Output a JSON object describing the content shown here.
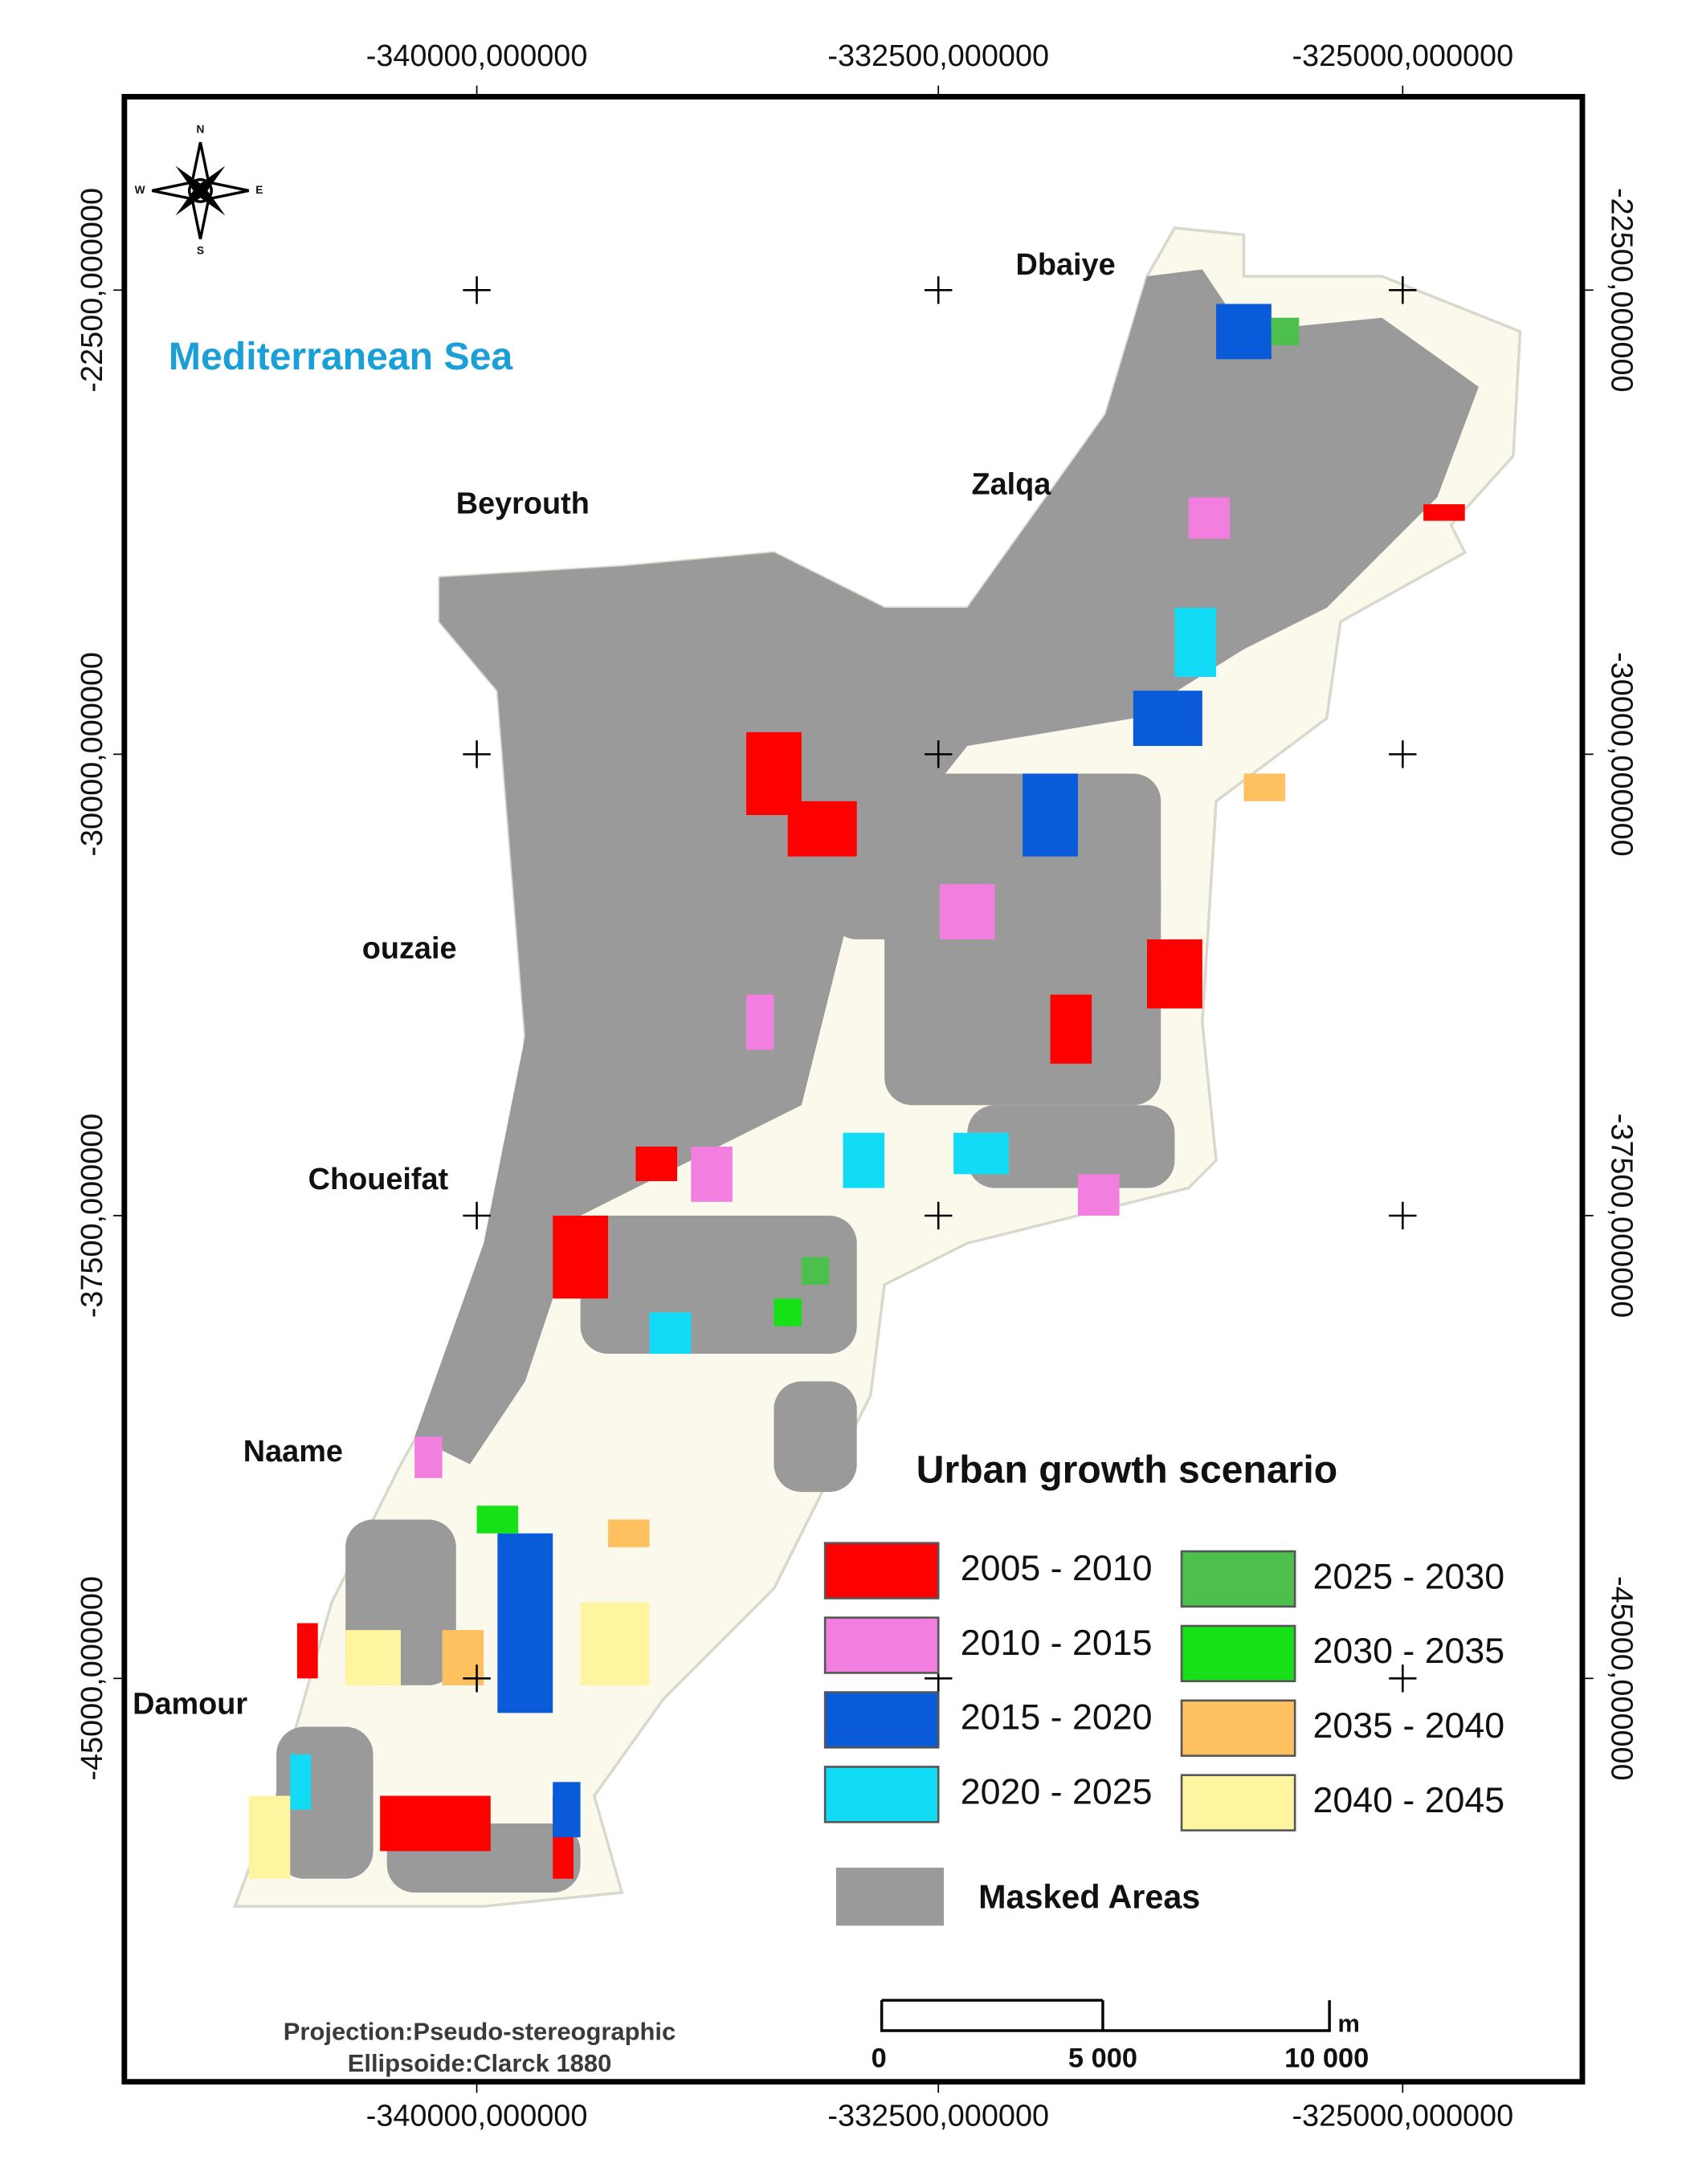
{
  "map": {
    "x_labels": [
      "-340000,000000",
      "-332500,000000",
      "-325000,000000"
    ],
    "y_labels": [
      "-22500,000000",
      "-30000,000000",
      "-37500,000000",
      "-45000,000000"
    ],
    "sea_label": "Mediterranean Sea",
    "places": [
      "Dbaiye",
      "Zalqa",
      "Beyrouth",
      "ouzaie",
      "Choueifat",
      "Naame",
      "Damour"
    ],
    "compass": [
      "N",
      "W",
      "E",
      "S"
    ],
    "legend": {
      "title": "Urban growth scenario",
      "items": [
        {
          "label": "2005 - 2010",
          "color": "#ff0000"
        },
        {
          "label": "2010 - 2015",
          "color": "#f27ee0"
        },
        {
          "label": "2015 - 2020",
          "color": "#0a5bd9"
        },
        {
          "label": "2020 - 2025",
          "color": "#12dcf5"
        },
        {
          "label": "2025 - 2030",
          "color": "#4cbf4c"
        },
        {
          "label": "2030 - 2035",
          "color": "#16e016"
        },
        {
          "label": "2035 - 2040",
          "color": "#ffc060"
        },
        {
          "label": "2040 - 2045",
          "color": "#fff4a0"
        }
      ],
      "masked": {
        "label": "Masked Areas",
        "color": "#9a9a9a"
      }
    },
    "scale_bar": {
      "unit": "m",
      "labels": [
        "0",
        "5 000",
        "10 000"
      ]
    },
    "projection": [
      "Projection:Pseudo-stereographic",
      "Ellipsoide:Clarck 1880"
    ]
  }
}
